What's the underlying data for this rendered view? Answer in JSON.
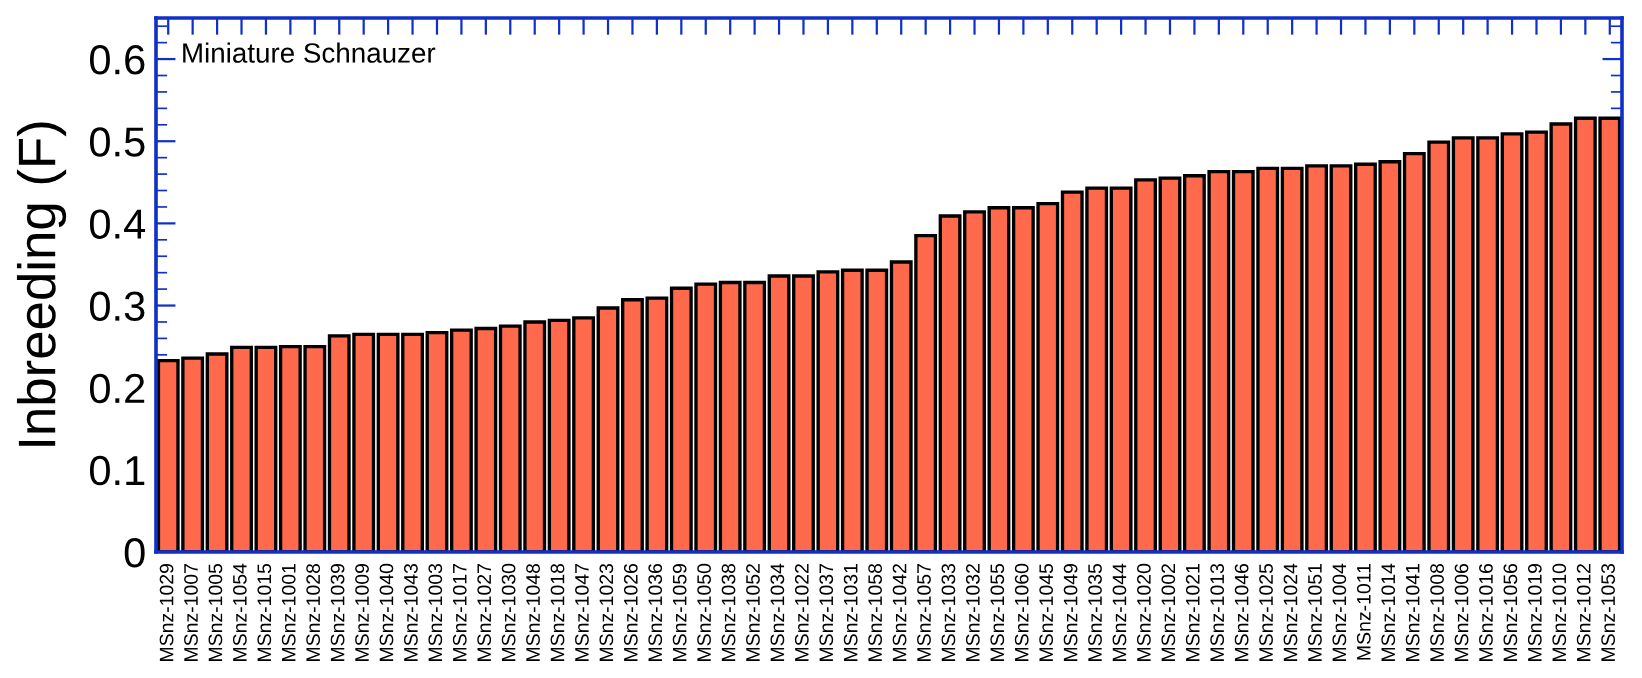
{
  "chart_data": {
    "type": "bar",
    "ylabel": "Inbreeding (F)",
    "annotations": [
      "Miniature Schnauzer"
    ],
    "categories": [
      "MSnz-1029",
      "MSnz-1007",
      "MSnz-1005",
      "MSnz-1054",
      "MSnz-1015",
      "MSnz-1001",
      "MSnz-1028",
      "MSnz-1039",
      "MSnz-1009",
      "MSnz-1040",
      "MSnz-1043",
      "MSnz-1003",
      "MSnz-1017",
      "MSnz-1027",
      "MSnz-1030",
      "MSnz-1048",
      "MSnz-1018",
      "MSnz-1047",
      "MSnz-1023",
      "MSnz-1026",
      "MSnz-1036",
      "MSnz-1059",
      "MSnz-1050",
      "MSnz-1038",
      "MSnz-1052",
      "MSnz-1034",
      "MSnz-1022",
      "MSnz-1037",
      "MSnz-1031",
      "MSnz-1058",
      "MSnz-1042",
      "MSnz-1057",
      "MSnz-1033",
      "MSnz-1032",
      "MSnz-1055",
      "MSnz-1060",
      "MSnz-1045",
      "MSnz-1049",
      "MSnz-1035",
      "MSnz-1044",
      "MSnz-1020",
      "MSnz-1002",
      "MSnz-1021",
      "MSnz-1013",
      "MSnz-1046",
      "MSnz-1025",
      "MSnz-1024",
      "MSnz-1051",
      "MSnz-1004",
      "MSnz-1011",
      "MSnz-1014",
      "MSnz-1041",
      "MSnz-1008",
      "MSnz-1006",
      "MSnz-1016",
      "MSnz-1056",
      "MSnz-1019",
      "MSnz-1010",
      "MSnz-1012",
      "MSnz-1053"
    ],
    "values": [
      0.233,
      0.236,
      0.241,
      0.249,
      0.249,
      0.25,
      0.25,
      0.263,
      0.265,
      0.265,
      0.265,
      0.267,
      0.27,
      0.272,
      0.275,
      0.28,
      0.282,
      0.285,
      0.297,
      0.307,
      0.309,
      0.321,
      0.326,
      0.328,
      0.328,
      0.336,
      0.336,
      0.341,
      0.343,
      0.343,
      0.353,
      0.385,
      0.409,
      0.414,
      0.419,
      0.419,
      0.424,
      0.438,
      0.443,
      0.443,
      0.453,
      0.455,
      0.458,
      0.463,
      0.463,
      0.467,
      0.467,
      0.47,
      0.47,
      0.472,
      0.475,
      0.485,
      0.499,
      0.504,
      0.504,
      0.509,
      0.511,
      0.521,
      0.528,
      0.528
    ],
    "color": "#ff6a4d",
    "ylim": [
      0,
      0.65
    ],
    "yticks": [
      0,
      {
        "value": 0.02,
        "label": null
      },
      {
        "value": 0.04,
        "label": null
      },
      {
        "value": 0.06,
        "label": null
      },
      {
        "value": 0.08,
        "label": null
      },
      0.1,
      {
        "value": 0.12,
        "label": null
      },
      {
        "value": 0.14,
        "label": null
      },
      {
        "value": 0.16,
        "label": null
      },
      {
        "value": 0.18,
        "label": null
      },
      0.2,
      {
        "value": 0.22,
        "label": null
      },
      {
        "value": 0.24,
        "label": null
      },
      {
        "value": 0.26,
        "label": null
      },
      {
        "value": 0.28,
        "label": null
      },
      0.3,
      {
        "value": 0.32,
        "label": null
      },
      {
        "value": 0.34,
        "label": null
      },
      {
        "value": 0.36,
        "label": null
      },
      {
        "value": 0.38,
        "label": null
      },
      0.4,
      {
        "value": 0.42,
        "label": null
      },
      {
        "value": 0.44,
        "label": null
      },
      {
        "value": 0.46,
        "label": null
      },
      {
        "value": 0.48,
        "label": null
      },
      0.5,
      {
        "value": 0.52,
        "label": null
      },
      {
        "value": 0.54,
        "label": null
      },
      {
        "value": 0.56,
        "label": null
      },
      {
        "value": 0.58,
        "label": null
      },
      0.6,
      {
        "value": 0.62,
        "label": null
      },
      {
        "value": 0.64,
        "label": null
      }
    ],
    "grid": false,
    "legend": false
  }
}
